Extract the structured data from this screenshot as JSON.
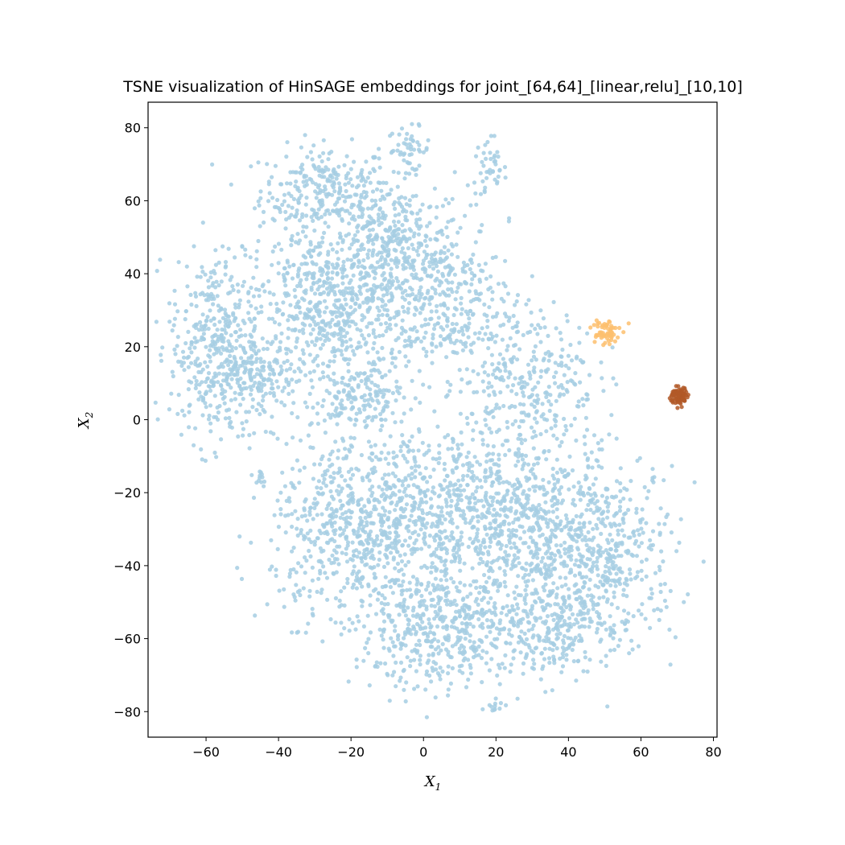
{
  "chart_data": {
    "type": "scatter",
    "title": "TSNE visualization of HinSAGE embeddings for joint_[64,64]_[linear,relu]_[10,10]",
    "xlabel": "X",
    "xlabel_sub": "1",
    "ylabel": "X",
    "ylabel_sub": "2",
    "xlim": [
      -76,
      81
    ],
    "ylim": [
      -87,
      87
    ],
    "xticks": [
      -60,
      -40,
      -20,
      0,
      20,
      40,
      60,
      80
    ],
    "yticks": [
      -80,
      -60,
      -40,
      -20,
      0,
      20,
      40,
      60,
      80
    ],
    "xtick_labels": [
      "−60",
      "−40",
      "−20",
      "0",
      "20",
      "40",
      "60",
      "80"
    ],
    "ytick_labels": [
      "−80",
      "−60",
      "−40",
      "−20",
      "0",
      "20",
      "40",
      "60",
      "80"
    ],
    "grid": false,
    "colors": {
      "light_blue": "#a6cee3",
      "orange": "#fdbf6f",
      "brown": "#b15928"
    },
    "series": [
      {
        "color": "#a6cee3",
        "clusters": [
          {
            "center": [
              -27,
              63
            ],
            "spread": [
              9,
              6
            ],
            "count": 260
          },
          {
            "center": [
              -4,
              74
            ],
            "spread": [
              3,
              3
            ],
            "count": 50
          },
          {
            "center": [
              18,
              68
            ],
            "spread": [
              2.5,
              5
            ],
            "count": 45
          },
          {
            "center": [
              -8,
              48
            ],
            "spread": [
              10,
              8
            ],
            "count": 320
          },
          {
            "center": [
              -25,
              30
            ],
            "spread": [
              12,
              12
            ],
            "count": 700
          },
          {
            "center": [
              -58,
              20
            ],
            "spread": [
              6,
              13
            ],
            "count": 380
          },
          {
            "center": [
              -45,
              12
            ],
            "spread": [
              5,
              6
            ],
            "count": 150
          },
          {
            "center": [
              -18,
              6
            ],
            "spread": [
              6,
              4
            ],
            "count": 130
          },
          {
            "center": [
              5,
              32
            ],
            "spread": [
              10,
              10
            ],
            "count": 320
          },
          {
            "center": [
              30,
              12
            ],
            "spread": [
              9,
              9
            ],
            "count": 260
          },
          {
            "center": [
              -45,
              -16
            ],
            "spread": [
              1,
              1.5
            ],
            "count": 12
          },
          {
            "center": [
              -20,
              -30
            ],
            "spread": [
              11,
              12
            ],
            "count": 560
          },
          {
            "center": [
              5,
              -25
            ],
            "spread": [
              12,
              12
            ],
            "count": 560
          },
          {
            "center": [
              30,
              -30
            ],
            "spread": [
              12,
              14
            ],
            "count": 620
          },
          {
            "center": [
              50,
              -38
            ],
            "spread": [
              10,
              12
            ],
            "count": 420
          },
          {
            "center": [
              5,
              -58
            ],
            "spread": [
              12,
              8
            ],
            "count": 460
          },
          {
            "center": [
              35,
              -57
            ],
            "spread": [
              8,
              6
            ],
            "count": 200
          },
          {
            "center": [
              19,
              -78
            ],
            "spread": [
              1.5,
              1
            ],
            "count": 12
          }
        ]
      },
      {
        "color": "#fdbf6f",
        "clusters": [
          {
            "center": [
              50,
              24
            ],
            "spread": [
              2,
              2
            ],
            "count": 60
          }
        ]
      },
      {
        "color": "#b15928",
        "clusters": [
          {
            "center": [
              70.5,
              6.5
            ],
            "spread": [
              1.2,
              1.2
            ],
            "count": 90
          }
        ]
      }
    ]
  }
}
